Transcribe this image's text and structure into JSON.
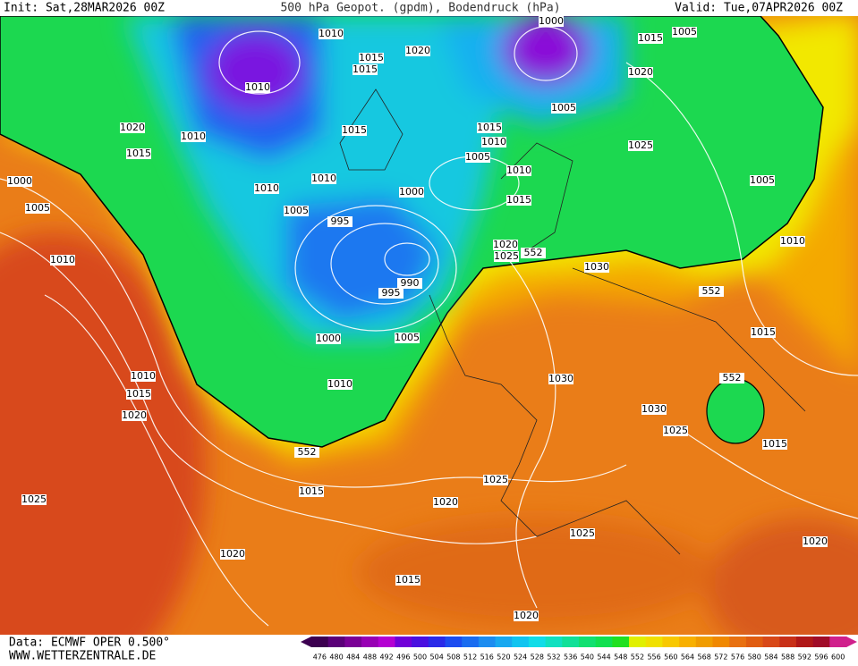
{
  "header": {
    "init": "Init: Sat,28MAR2026 00Z",
    "title": "500 hPa Geopot. (gpdm), Bodendruck (hPa)",
    "valid": "Valid: Tue,07APR2026 00Z"
  },
  "footer": {
    "data": "Data: ECMWF OPER 0.500°",
    "site": "WWW.WETTERZENTRALE.DE"
  },
  "legend": {
    "values": [
      476,
      480,
      484,
      488,
      492,
      496,
      500,
      504,
      508,
      512,
      516,
      520,
      524,
      528,
      532,
      536,
      540,
      544,
      548,
      552,
      556,
      560,
      564,
      568,
      572,
      576,
      580,
      584,
      588,
      592,
      596,
      600
    ],
    "colors": [
      "#3c0050",
      "#5a0078",
      "#7a0096",
      "#9800b4",
      "#b400d2",
      "#7000d8",
      "#4a10e0",
      "#2a2ae8",
      "#1c4cf0",
      "#1a6cf0",
      "#1c8cf0",
      "#18a8f0",
      "#10c4f0",
      "#10dce8",
      "#10e0c0",
      "#10e098",
      "#10e070",
      "#10e050",
      "#20e020",
      "#e0f000",
      "#f0e000",
      "#f8c800",
      "#f8b000",
      "#f09c00",
      "#f08800",
      "#e87010",
      "#e05c10",
      "#d84818",
      "#c83018",
      "#b01818",
      "#a00c28",
      "#d0208c"
    ]
  },
  "isobar_labels": [
    "1010",
    "1015",
    "1020",
    "1015",
    "1010",
    "1020",
    "1010",
    "1015",
    "1015",
    "1000",
    "1015",
    "1005",
    "1020",
    "1005",
    "1015",
    "1010",
    "1005",
    "1010",
    "1025",
    "1005",
    "1000",
    "1005",
    "1010",
    "1010",
    "1000",
    "1015",
    "1005",
    "995",
    "1010",
    "1020",
    "1025",
    "552",
    "1030",
    "990",
    "995",
    "1010",
    "552",
    "1000",
    "1005",
    "1015",
    "1010",
    "1015",
    "1020",
    "1010",
    "1030",
    "552",
    "1030",
    "1025",
    "1015",
    "552",
    "1015",
    "1025",
    "1020",
    "1025",
    "1025",
    "1020",
    "1020",
    "1015",
    "1020"
  ]
}
